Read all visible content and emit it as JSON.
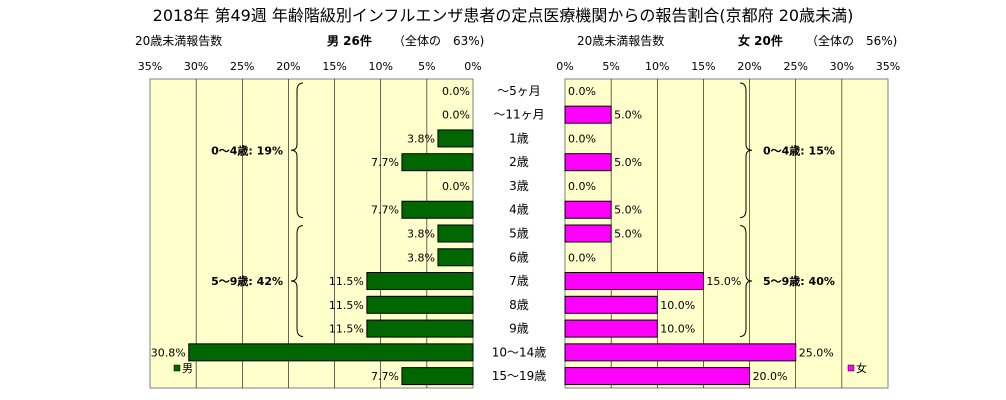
{
  "chart_data": {
    "type": "bar",
    "title": "2018年 第49週 年齢階級別インフルエンザ患者の定点医療機関からの報告割合(京都府 20歳未満)",
    "categories": [
      "～5ヶ月",
      "～11ヶ月",
      "1歳",
      "2歳",
      "3歳",
      "4歳",
      "5歳",
      "6歳",
      "7歳",
      "8歳",
      "9歳",
      "10～14歳",
      "15～19歳"
    ],
    "tick_labels": [
      "0%",
      "5%",
      "10%",
      "15%",
      "20%",
      "25%",
      "30%",
      "35%"
    ],
    "xlim": [
      0,
      35
    ],
    "grid": true,
    "series": [
      {
        "name": "男",
        "color": "#006600",
        "values": [
          0.0,
          0.0,
          3.8,
          7.7,
          0.0,
          7.7,
          3.8,
          3.8,
          11.5,
          11.5,
          11.5,
          30.8,
          7.7
        ],
        "labels": [
          "0.0%",
          "0.0%",
          "3.8%",
          "7.7%",
          "0.0%",
          "7.7%",
          "3.8%",
          "3.8%",
          "11.5%",
          "11.5%",
          "11.5%",
          "30.8%",
          "7.7%"
        ],
        "header_left": "20歳未満報告数",
        "header_count": "男 26件",
        "header_share": "（全体の　63%)",
        "groups": [
          {
            "label": "0～4歳: 19%",
            "from": 0,
            "to": 5
          },
          {
            "label": "5～9歳: 42%",
            "from": 6,
            "to": 10
          }
        ]
      },
      {
        "name": "女",
        "color": "#ff00ff",
        "values": [
          0.0,
          5.0,
          0.0,
          5.0,
          0.0,
          5.0,
          5.0,
          0.0,
          15.0,
          10.0,
          10.0,
          25.0,
          20.0
        ],
        "labels": [
          "0.0%",
          "5.0%",
          "0.0%",
          "5.0%",
          "0.0%",
          "5.0%",
          "5.0%",
          "0.0%",
          "15.0%",
          "10.0%",
          "10.0%",
          "25.0%",
          "20.0%"
        ],
        "header_left": "20歳未満報告数",
        "header_count": "女 20件",
        "header_share": "（全体の　56%)",
        "groups": [
          {
            "label": "0～4歳: 15%",
            "from": 0,
            "to": 5
          },
          {
            "label": "5～9歳: 40%",
            "from": 6,
            "to": 10
          }
        ]
      }
    ],
    "legend": [
      "男",
      "女"
    ]
  }
}
